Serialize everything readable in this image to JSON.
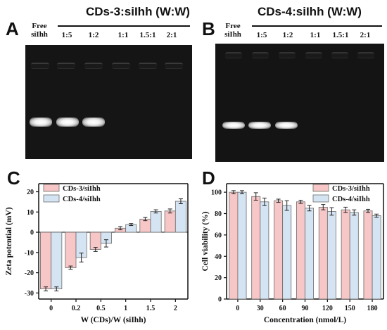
{
  "panels": {
    "A": {
      "letter": "A",
      "title": "CDs-3:siIhh (W:W)",
      "free_label_line1": "Free",
      "free_label_line2": "siIhh",
      "lanes": [
        "1:5",
        "1:2",
        "1:1",
        "1.5:1",
        "2:1"
      ],
      "bands_visible": [
        true,
        true,
        true,
        false,
        false,
        false
      ]
    },
    "B": {
      "letter": "B",
      "title": "CDs-4:siIhh (W:W)",
      "free_label_line1": "Free",
      "free_label_line2": "siIhh",
      "lanes": [
        "1:5",
        "1:2",
        "1:1",
        "1.5:1",
        "2:1"
      ],
      "bands_visible": [
        true,
        true,
        true,
        false,
        false,
        false
      ]
    },
    "C": {
      "letter": "C"
    },
    "D": {
      "letter": "D"
    }
  },
  "colors": {
    "pink": "#f7c6c6",
    "blue": "#d5e4f2",
    "bar_stroke": "#6b6b6b"
  },
  "chart_data": [
    {
      "type": "bar",
      "panel": "C",
      "categories": [
        "0",
        "0.2",
        "0.5",
        "1",
        "1.5",
        "2"
      ],
      "series": [
        {
          "name": "CDs-3/siIhh",
          "values": [
            -28,
            -17.5,
            -8.5,
            2,
            6.5,
            10.5
          ],
          "errors": [
            1,
            0.8,
            1,
            0.8,
            0.8,
            1
          ]
        },
        {
          "name": "CDs-4/siIhh",
          "values": [
            -28,
            -12.5,
            -5.5,
            3.8,
            10.3,
            15.3
          ],
          "errors": [
            1,
            2.2,
            1.8,
            0.5,
            0.8,
            1.2
          ]
        }
      ],
      "xlabel": "W (CDs)/W (siIhh)",
      "ylabel": "Zeta potential (mV)",
      "ylim": [
        -33,
        24
      ],
      "yticks": [
        20,
        10,
        0,
        -10,
        -20,
        -30
      ],
      "legend_position": "top-left"
    },
    {
      "type": "bar",
      "panel": "D",
      "categories": [
        "0",
        "30",
        "60",
        "90",
        "120",
        "150",
        "180"
      ],
      "series": [
        {
          "name": "CDs-3/siIhh",
          "values": [
            100,
            96,
            92,
            91,
            86,
            83.5,
            82.5
          ],
          "errors": [
            1.5,
            3.5,
            1.5,
            1.5,
            2.5,
            2.5,
            1.5
          ]
        },
        {
          "name": "CDs-4/siIhh",
          "values": [
            100,
            91,
            87.5,
            85,
            82,
            81,
            78
          ],
          "errors": [
            1.5,
            3.5,
            4.5,
            2.5,
            3.5,
            2.5,
            1.5
          ]
        }
      ],
      "xlabel": "Concentration (nmol/L)",
      "ylabel": "Cell viability (%)",
      "ylim": [
        0,
        108
      ],
      "yticks": [
        0,
        20,
        40,
        60,
        80,
        100
      ],
      "legend_position": "top-right"
    }
  ]
}
